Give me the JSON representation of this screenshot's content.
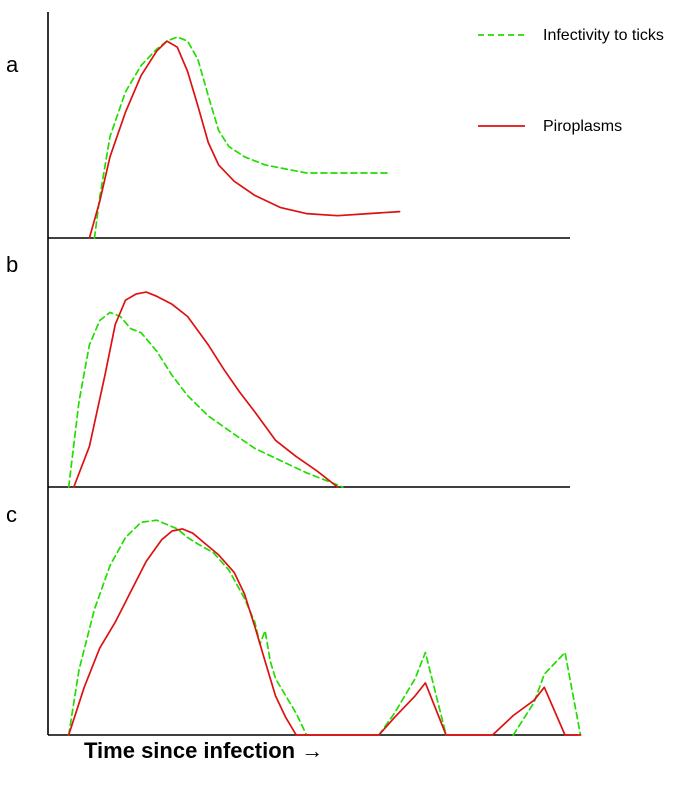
{
  "chart_data": {
    "type": "line",
    "xlabel": "Time since infection →",
    "ylabel": "",
    "grid": false,
    "legend_position": "top-right",
    "colors": {
      "infectivity": "#22dd00",
      "piroplasms": "#dd1111",
      "axes": "#000000"
    },
    "legend": [
      {
        "key": "infectivity",
        "name": "Infectivity to ticks",
        "style": "dashed"
      },
      {
        "key": "piroplasms",
        "name": "Piroplasms",
        "style": "solid"
      }
    ],
    "xlim": [
      0,
      100
    ],
    "ylim": [
      0,
      100
    ],
    "panels": [
      {
        "label": "a",
        "series": [
          {
            "key": "infectivity",
            "name": "Infectivity to ticks",
            "x": [
              9,
              10,
              12,
              15,
              18,
              21,
              23,
              25,
              27,
              29,
              31,
              33,
              35,
              38,
              42,
              46,
              50,
              55,
              60,
              66
            ],
            "y": [
              0,
              20,
              50,
              72,
              85,
              93,
              97,
              99,
              97,
              88,
              70,
              53,
              45,
              40,
              36,
              34,
              32,
              32,
              32,
              32
            ]
          },
          {
            "key": "piroplasms",
            "name": "Piroplasms",
            "x": [
              8,
              10,
              12,
              15,
              18,
              21,
              23,
              25,
              27,
              29,
              31,
              33,
              36,
              40,
              45,
              50,
              56,
              62,
              68
            ],
            "y": [
              0,
              18,
              40,
              62,
              80,
              92,
              97,
              94,
              82,
              65,
              47,
              36,
              28,
              21,
              15,
              12,
              11,
              12,
              13
            ]
          }
        ]
      },
      {
        "label": "b",
        "series": [
          {
            "key": "infectivity",
            "name": "Infectivity to ticks",
            "x": [
              4,
              6,
              8,
              10,
              12,
              14,
              16,
              18,
              21,
              24,
              27,
              31,
              36,
              40,
              45,
              50,
              54,
              57
            ],
            "y": [
              0,
              42,
              70,
              82,
              86,
              84,
              78,
              76,
              67,
              55,
              45,
              35,
              26,
              19,
              13,
              7,
              3,
              0
            ]
          },
          {
            "key": "piroplasms",
            "name": "Piroplasms",
            "x": [
              5,
              8,
              11,
              13,
              15,
              17,
              19,
              21,
              24,
              27,
              31,
              34,
              37,
              40,
              44,
              48,
              52,
              56
            ],
            "y": [
              0,
              20,
              55,
              80,
              92,
              95,
              96,
              94,
              90,
              84,
              70,
              58,
              47,
              37,
              23,
              15,
              8,
              0
            ]
          }
        ]
      },
      {
        "label": "c",
        "series": [
          {
            "key": "infectivity",
            "name": "Infectivity to ticks",
            "x": [
              4,
              6,
              9,
              12,
              15,
              18,
              21,
              23,
              25,
              27,
              29,
              32,
              35,
              38,
              40,
              41,
              42,
              43,
              44,
              46,
              48,
              50,
              52,
              54,
              56,
              58,
              64,
              67,
              71,
              73,
              77,
              80,
              86,
              90,
              94,
              96,
              100,
              103
            ],
            "y": [
              0,
              30,
              58,
              78,
              91,
              98,
              99,
              97,
              95,
              91,
              88,
              84,
              76,
              63,
              52,
              42,
              48,
              34,
              26,
              18,
              10,
              0,
              null,
              null,
              null,
              null,
              0,
              10,
              26,
              38,
              0,
              null,
              null,
              0,
              15,
              28,
              38,
              0
            ]
          },
          {
            "key": "piroplasms",
            "name": "Piroplasms",
            "x": [
              4,
              7,
              10,
              13,
              16,
              19,
              22,
              24,
              26,
              28,
              30,
              33,
              36,
              38,
              40,
              42,
              44,
              46,
              48,
              64,
              67,
              71,
              73,
              77,
              86,
              90,
              94,
              96,
              100,
              103
            ],
            "y": [
              0,
              22,
              40,
              52,
              66,
              80,
              90,
              94,
              95,
              93,
              89,
              83,
              75,
              65,
              50,
              34,
              18,
              8,
              0,
              0,
              8,
              18,
              24,
              0,
              0,
              9,
              16,
              22,
              0,
              0
            ]
          }
        ]
      }
    ]
  }
}
